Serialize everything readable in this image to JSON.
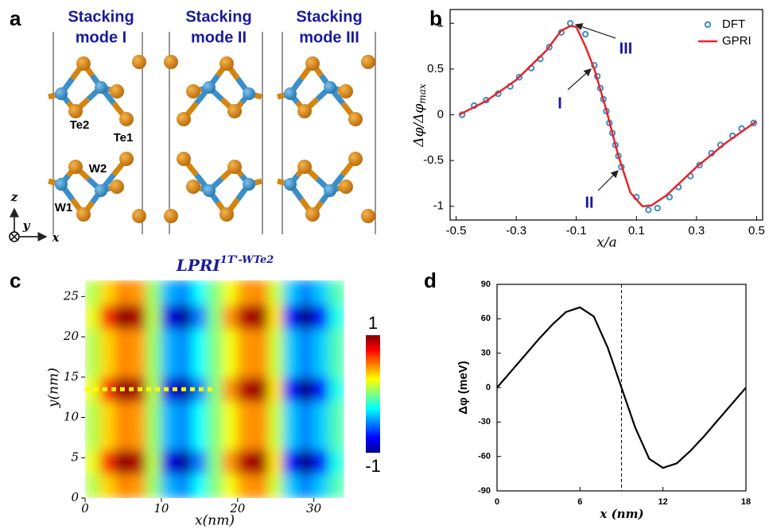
{
  "chart_data": [
    {
      "type": "structure",
      "panel": "a",
      "titles": [
        [
          "Stacking",
          "mode I"
        ],
        [
          "Stacking",
          "mode II"
        ],
        [
          "Stacking",
          "mode III"
        ]
      ],
      "atom_labels": [
        "Te2",
        "Te1",
        "W2",
        "W1"
      ],
      "axis_labels": [
        "z",
        "y",
        "x"
      ]
    },
    {
      "type": "line",
      "panel": "b",
      "xlabel": "x/a",
      "ylabel": "Δφ/Δφ",
      "ylabel_subscript": "max",
      "xlim": [
        -0.52,
        0.52
      ],
      "ylim": [
        -1.15,
        1.15
      ],
      "xticks": [
        -0.5,
        -0.3,
        -0.1,
        0.1,
        0.3,
        0.5
      ],
      "yticks": [
        -1,
        -0.5,
        0,
        0.5,
        1
      ],
      "legend": "upper right",
      "annotations": [
        "III",
        "I",
        "II"
      ],
      "series": [
        {
          "name": "DFT",
          "style": "markers",
          "color": "#3a8fc9",
          "x": [
            -0.48,
            -0.44,
            -0.4,
            -0.36,
            -0.32,
            -0.29,
            -0.25,
            -0.22,
            -0.19,
            -0.15,
            -0.12,
            -0.07,
            -0.04,
            -0.03,
            -0.02,
            -0.01,
            0,
            0.01,
            0.02,
            0.03,
            0.04,
            0.05,
            0.1,
            0.14,
            0.17,
            0.21,
            0.24,
            0.28,
            0.31,
            0.35,
            0.38,
            0.42,
            0.45,
            0.49
          ],
          "values": [
            0,
            0.1,
            0.16,
            0.23,
            0.31,
            0.41,
            0.51,
            0.61,
            0.74,
            0.9,
            1.0,
            0.88,
            0.54,
            0.42,
            0.29,
            0.17,
            0.04,
            -0.09,
            -0.2,
            -0.33,
            -0.45,
            -0.57,
            -0.9,
            -1.04,
            -1.02,
            -0.9,
            -0.79,
            -0.67,
            -0.55,
            -0.42,
            -0.33,
            -0.23,
            -0.15,
            -0.09
          ]
        },
        {
          "name": "GPRI",
          "style": "line",
          "color": "#e8252b",
          "x": [
            -0.49,
            -0.4,
            -0.3,
            -0.2,
            -0.15,
            -0.12,
            -0.1,
            -0.07,
            -0.04,
            0,
            0.04,
            0.08,
            0.12,
            0.15,
            0.2,
            0.3,
            0.4,
            0.5
          ],
          "values": [
            0,
            0.15,
            0.38,
            0.7,
            0.92,
            0.97,
            0.96,
            0.75,
            0.5,
            0.05,
            -0.45,
            -0.85,
            -1.0,
            -0.99,
            -0.88,
            -0.57,
            -0.3,
            -0.07
          ]
        }
      ]
    },
    {
      "type": "heatmap",
      "panel": "c",
      "title": "LPRI",
      "title_superscript": "1T'-WTe2",
      "xlabel": "x(nm)",
      "ylabel": "y(nm)",
      "xlim": [
        0,
        34
      ],
      "ylim": [
        0,
        27
      ],
      "xticks": [
        0,
        10,
        20,
        30
      ],
      "yticks": [
        0,
        5,
        10,
        15,
        20,
        25
      ],
      "zlim": [
        -1,
        1
      ],
      "colorbar_ticks": [
        -1,
        1
      ],
      "colormap": "jet",
      "xbins": [
        0,
        2,
        4,
        6,
        8,
        10,
        12,
        14,
        16,
        18,
        20,
        22,
        24,
        26,
        28,
        30,
        32,
        34
      ],
      "ybins": [
        0,
        3,
        6,
        9,
        12,
        15,
        18,
        21,
        24,
        27
      ],
      "values": [
        [
          0.1,
          0.33,
          0.49,
          0.45,
          0.05,
          -0.4,
          -0.48,
          -0.25,
          0,
          0.23,
          0.45,
          0.48,
          0.15,
          -0.35,
          -0.5,
          -0.35,
          -0.1
        ],
        [
          0.2,
          0.65,
          0.98,
          0.9,
          0.1,
          -0.8,
          -0.95,
          -0.5,
          0,
          0.45,
          0.9,
          0.95,
          0.3,
          -0.7,
          -1,
          -0.7,
          -0.2
        ],
        [
          0.1,
          0.33,
          0.49,
          0.45,
          0.05,
          -0.4,
          -0.48,
          -0.25,
          0,
          0.23,
          0.45,
          0.48,
          0.15,
          -0.35,
          -0.5,
          -0.35,
          -0.1
        ],
        [
          0.1,
          0.33,
          0.49,
          0.45,
          0.05,
          -0.4,
          -0.48,
          -0.25,
          0,
          0.23,
          0.45,
          0.48,
          0.15,
          -0.35,
          -0.5,
          -0.35,
          -0.1
        ],
        [
          0.2,
          0.65,
          0.98,
          0.9,
          0.1,
          -0.8,
          -0.95,
          -0.5,
          0,
          0.45,
          0.9,
          0.95,
          0.3,
          -0.7,
          -1,
          -0.7,
          -0.2
        ],
        [
          0.1,
          0.33,
          0.49,
          0.45,
          0.05,
          -0.4,
          -0.48,
          -0.25,
          0,
          0.23,
          0.45,
          0.48,
          0.15,
          -0.35,
          -0.5,
          -0.35,
          -0.1
        ],
        [
          0.1,
          0.33,
          0.49,
          0.45,
          0.05,
          -0.4,
          -0.48,
          -0.25,
          0,
          0.23,
          0.45,
          0.48,
          0.15,
          -0.35,
          -0.5,
          -0.35,
          -0.1
        ],
        [
          0.2,
          0.65,
          0.98,
          0.9,
          0.1,
          -0.8,
          -0.95,
          -0.5,
          0,
          0.45,
          0.9,
          0.95,
          0.3,
          -0.7,
          -1,
          -0.7,
          -0.2
        ],
        [
          0.1,
          0.33,
          0.49,
          0.45,
          0.05,
          -0.4,
          -0.48,
          -0.25,
          0,
          0.23,
          0.45,
          0.48,
          0.15,
          -0.35,
          -0.5,
          -0.35,
          -0.1
        ]
      ],
      "cut_line": {
        "y": 13.5,
        "x": [
          0,
          17
        ],
        "color": "#ffff00"
      }
    },
    {
      "type": "line",
      "panel": "d",
      "xlabel": "x (nm)",
      "ylabel": "Δφ (meV)",
      "xlim": [
        0,
        18
      ],
      "ylim": [
        -90,
        90
      ],
      "xticks": [
        0,
        6,
        12,
        18
      ],
      "yticks": [
        -90,
        -60,
        -30,
        0,
        30,
        60,
        90
      ],
      "vline": 9,
      "series": [
        {
          "style": "line",
          "color": "#000000",
          "x": [
            0,
            1,
            2,
            3,
            4,
            5,
            6,
            7,
            8,
            9,
            10,
            11,
            12,
            13,
            14,
            15,
            16,
            17,
            18
          ],
          "values": [
            0,
            14,
            28,
            42,
            55,
            66,
            70,
            62,
            35,
            0,
            -35,
            -62,
            -70,
            -66,
            -55,
            -42,
            -28,
            -14,
            0
          ]
        }
      ]
    }
  ]
}
